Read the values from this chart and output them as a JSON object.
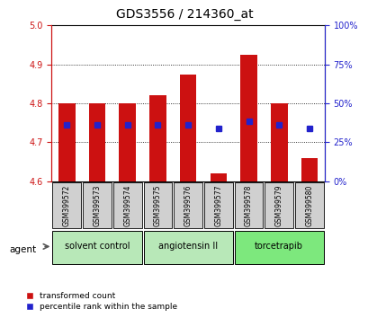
{
  "title": "GDS3556 / 214360_at",
  "samples": [
    "GSM399572",
    "GSM399573",
    "GSM399574",
    "GSM399575",
    "GSM399576",
    "GSM399577",
    "GSM399578",
    "GSM399579",
    "GSM399580"
  ],
  "red_bar_top": [
    4.8,
    4.8,
    4.8,
    4.82,
    4.875,
    4.62,
    4.925,
    4.8,
    4.66
  ],
  "red_bar_bottom": 4.6,
  "blue_dot_y": [
    4.745,
    4.745,
    4.745,
    4.745,
    4.745,
    4.735,
    4.755,
    4.745,
    4.735
  ],
  "ylim": [
    4.6,
    5.0
  ],
  "yticks_left": [
    4.6,
    4.7,
    4.8,
    4.9,
    5.0
  ],
  "yticks_right": [
    0,
    25,
    50,
    75,
    100
  ],
  "groups": [
    {
      "label": "solvent control",
      "indices": [
        0,
        1,
        2
      ],
      "color": "#b8e8b8"
    },
    {
      "label": "angiotensin II",
      "indices": [
        3,
        4,
        5
      ],
      "color": "#b8e8b8"
    },
    {
      "label": "torcetrapib",
      "indices": [
        6,
        7,
        8
      ],
      "color": "#7de87d"
    }
  ],
  "agent_label": "agent",
  "legend_red": "transformed count",
  "legend_blue": "percentile rank within the sample",
  "bar_color": "#cc1111",
  "blue_color": "#2222cc",
  "left_axis_color": "#cc1111",
  "right_axis_color": "#2222cc",
  "sample_bg_color": "#d0d0d0",
  "bar_width": 0.55
}
